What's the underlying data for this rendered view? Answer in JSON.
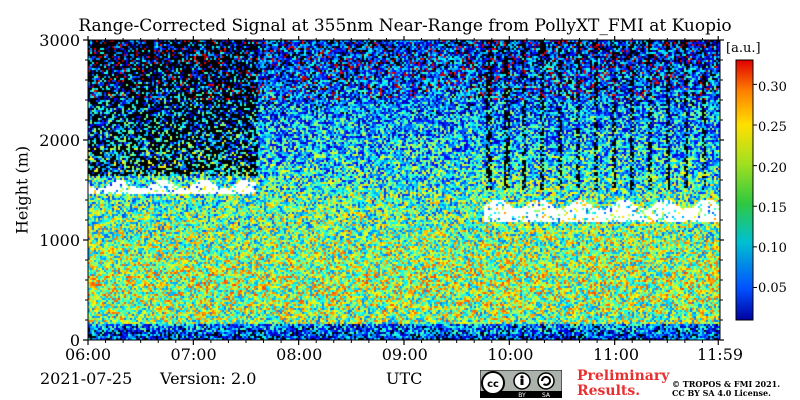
{
  "chart_data": {
    "type": "heatmap",
    "title": "Range-Corrected Signal at 355nm Near-Range from PollyXT_FMI at Kuopio",
    "ylabel": "Height (m)",
    "xlabel": "UTC",
    "x_ticks": [
      "06:00",
      "07:00",
      "08:00",
      "09:00",
      "10:00",
      "11:00",
      "11:59"
    ],
    "xlim": [
      "06:00",
      "11:59"
    ],
    "y_ticks": [
      0,
      1000,
      2000,
      3000
    ],
    "ylim": [
      0,
      3000
    ],
    "colorbar": {
      "unit": "[a.u.]",
      "ticks": [
        "0.05",
        "0.10",
        "0.15",
        "0.20",
        "0.25",
        "0.30"
      ],
      "range": [
        0.01,
        0.33
      ],
      "colormap": "jet"
    },
    "cloud_layers": [
      {
        "start": "06:00",
        "end": "07:35",
        "base_m": 1420,
        "top_m": 1650
      },
      {
        "start": "09:45",
        "end": "11:59",
        "base_m": 1150,
        "top_m": 1450
      }
    ]
  },
  "footer": {
    "date": "2021-07-25",
    "version": "Version: 2.0",
    "preliminary": [
      "Preliminary",
      "Results."
    ],
    "copyright": [
      "© TROPOS & FMI 2021.",
      "CC BY SA 4.0 License."
    ],
    "license_badge": {
      "text_left": "BY",
      "text_right": "SA"
    }
  }
}
